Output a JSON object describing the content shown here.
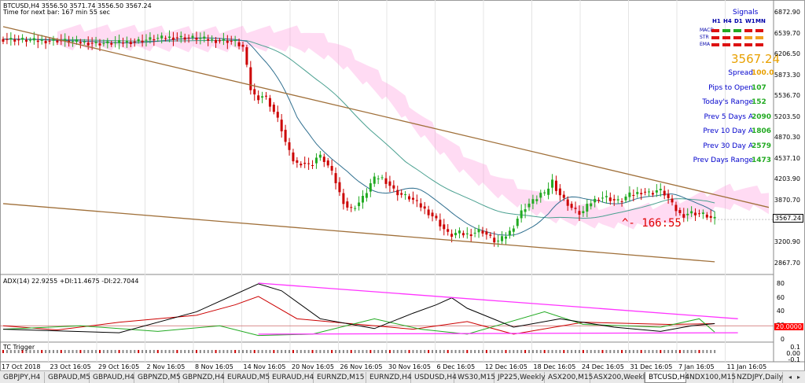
{
  "header": {
    "symbol_line": "BTCUSD,H4  3556.50 3571.74 3556.50 3567.24",
    "timer_line": "Time for next bar: 167 min 55 sec"
  },
  "signals": {
    "title": "Signals",
    "columns": [
      "H1",
      "H4",
      "D1",
      "W1",
      "MN"
    ],
    "rows": [
      {
        "label": "MACD",
        "colors": [
          "#dd1111",
          "#22aa22",
          "#22aa22",
          "#dd1111",
          "#dd1111"
        ]
      },
      {
        "label": "STR",
        "colors": [
          "#dd1111",
          "#dd1111",
          "#dd1111",
          "#f0a020",
          "#f0a020"
        ]
      },
      {
        "label": "EMA",
        "colors": [
          "#dd1111",
          "#dd1111",
          "#dd1111",
          "#dd1111",
          "#dd1111"
        ]
      }
    ]
  },
  "info": {
    "current_price": "3567.24",
    "items": [
      {
        "label": "Spread",
        "value": "100.0",
        "color": "#e8a000"
      },
      {
        "label": "Pips to Open",
        "value": "107",
        "color": "#22aa22"
      },
      {
        "label": "Today's Range",
        "value": "152",
        "color": "#22aa22"
      },
      {
        "label": "Prev 5 Days A",
        "value": "2090",
        "color": "#22aa22"
      },
      {
        "label": "Prev 10 Day A",
        "value": "1806",
        "color": "#22aa22"
      },
      {
        "label": "Prev 30 Day A",
        "value": "2579",
        "color": "#22aa22"
      },
      {
        "label": "Prev Days Range",
        "value": "1473",
        "color": "#22aa22"
      }
    ],
    "countdown": "^- 166:55"
  },
  "adx": {
    "title": "ADX(14) 22.9255 +DI:11.4675 -DI:22.7044",
    "level_label": "20.0000",
    "yticks": [
      "80",
      "60",
      "40",
      "20",
      "0"
    ]
  },
  "tc": {
    "title": "TC Trigger",
    "yticks": [
      "0.1",
      "0.00",
      "-0.1"
    ]
  },
  "tabs": {
    "items": [
      "GBPJPY,H4",
      "GBPAUD,M5",
      "GBPAUD,H4",
      "GBPNZD,M5",
      "GBPNZD,H4",
      "EURAUD,M5",
      "EURAUD,H4",
      "EURNZD,M15",
      "EURNZD,H4",
      "USDUSD,H4",
      "WS30,M15",
      "JP225,Weekly",
      "ASX200,M15",
      "ASX200,Weekly",
      "BTCUSD,H4",
      "NDX100,M15",
      "NZDJPY,Daily"
    ],
    "active": "BTCUSD,H4"
  },
  "colors": {
    "bull_candle": "#22aa22",
    "bear_candle": "#cc0000",
    "trendline": "#a0703a",
    "ma_fast": "#2f6f8f",
    "ma_slow": "#4aa090",
    "cloud": "#ff99dd",
    "adx_line": "#000000",
    "plus_di": "#22aa22",
    "minus_di": "#cc0000",
    "adx_trend": "#ff33ff"
  },
  "chart_data": {
    "type": "candlestick",
    "title": "",
    "price_axis": {
      "ticks": [
        "6872.90",
        "6539.70",
        "6206.50",
        "5873.30",
        "5536.70",
        "5203.50",
        "4870.30",
        "4537.10",
        "4203.90",
        "3870.70",
        "3567.24",
        "3200.90",
        "2867.70"
      ],
      "range": [
        2700,
        7000
      ]
    },
    "x_labels": [
      "17 Oct 2018",
      "23 Oct 16:05",
      "29 Oct 16:05",
      "2 Nov 16:05",
      "8 Nov 16:05",
      "14 Nov 16:05",
      "20 Nov 16:05",
      "26 Nov 16:05",
      "30 Nov 16:05",
      "6 Dec 16:05",
      "12 Dec 16:05",
      "18 Dec 16:05",
      "24 Dec 16:05",
      "31 Dec 16:05",
      "7 Jan 16:05",
      "11 Jan 16:05"
    ],
    "price_path": [
      [
        0,
        6450
      ],
      [
        5,
        6440
      ],
      [
        10,
        6420
      ],
      [
        15,
        6430
      ],
      [
        20,
        6400
      ],
      [
        25,
        6380
      ],
      [
        30,
        6390
      ],
      [
        35,
        6420
      ],
      [
        40,
        6460
      ],
      [
        45,
        6480
      ],
      [
        50,
        6470
      ],
      [
        55,
        6430
      ],
      [
        60,
        6420
      ],
      [
        63,
        6300
      ],
      [
        64,
        5700
      ],
      [
        66,
        5500
      ],
      [
        68,
        5560
      ],
      [
        70,
        5350
      ],
      [
        72,
        5100
      ],
      [
        74,
        4700
      ],
      [
        76,
        4450
      ],
      [
        78,
        4480
      ],
      [
        80,
        4420
      ],
      [
        82,
        4600
      ],
      [
        84,
        4480
      ],
      [
        86,
        4250
      ],
      [
        88,
        3900
      ],
      [
        90,
        3720
      ],
      [
        92,
        3800
      ],
      [
        94,
        3950
      ],
      [
        96,
        4200
      ],
      [
        98,
        4250
      ],
      [
        100,
        4150
      ],
      [
        102,
        4000
      ],
      [
        104,
        3950
      ],
      [
        106,
        3900
      ],
      [
        108,
        3800
      ],
      [
        110,
        3700
      ],
      [
        112,
        3600
      ],
      [
        114,
        3450
      ],
      [
        116,
        3300
      ],
      [
        118,
        3360
      ],
      [
        120,
        3320
      ],
      [
        122,
        3350
      ],
      [
        124,
        3400
      ],
      [
        126,
        3300
      ],
      [
        128,
        3200
      ],
      [
        130,
        3280
      ],
      [
        132,
        3400
      ],
      [
        134,
        3650
      ],
      [
        136,
        3800
      ],
      [
        138,
        3880
      ],
      [
        140,
        4020
      ],
      [
        141,
        3900
      ],
      [
        142,
        4250
      ],
      [
        144,
        4000
      ],
      [
        146,
        3850
      ],
      [
        148,
        3720
      ],
      [
        150,
        3650
      ],
      [
        152,
        3820
      ],
      [
        154,
        3900
      ],
      [
        156,
        3930
      ],
      [
        158,
        3880
      ],
      [
        160,
        3850
      ],
      [
        162,
        3950
      ],
      [
        164,
        3980
      ],
      [
        166,
        4020
      ],
      [
        168,
        3980
      ],
      [
        170,
        4050
      ],
      [
        172,
        3950
      ],
      [
        174,
        3750
      ],
      [
        176,
        3620
      ],
      [
        178,
        3680
      ],
      [
        180,
        3660
      ],
      [
        182,
        3640
      ],
      [
        184,
        3567
      ]
    ],
    "upper_trendline": [
      [
        0,
        6650
      ],
      [
        198,
        3760
      ]
    ],
    "lower_trendline": [
      [
        0,
        3820
      ],
      [
        184,
        2890
      ]
    ],
    "adx_series": {
      "adx": [
        [
          0,
          15
        ],
        [
          30,
          10
        ],
        [
          50,
          40
        ],
        [
          66,
          80
        ],
        [
          72,
          70
        ],
        [
          82,
          30
        ],
        [
          96,
          16
        ],
        [
          106,
          38
        ],
        [
          112,
          50
        ],
        [
          116,
          60
        ],
        [
          120,
          45
        ],
        [
          132,
          18
        ],
        [
          144,
          30
        ],
        [
          158,
          18
        ],
        [
          170,
          12
        ],
        [
          178,
          20
        ],
        [
          184,
          23
        ]
      ],
      "plus_di": [
        [
          0,
          15
        ],
        [
          20,
          20
        ],
        [
          40,
          12
        ],
        [
          56,
          20
        ],
        [
          66,
          6
        ],
        [
          80,
          8
        ],
        [
          96,
          30
        ],
        [
          108,
          15
        ],
        [
          120,
          8
        ],
        [
          140,
          40
        ],
        [
          150,
          22
        ],
        [
          170,
          18
        ],
        [
          180,
          30
        ],
        [
          184,
          11
        ]
      ],
      "minus_di": [
        [
          0,
          20
        ],
        [
          14,
          14
        ],
        [
          30,
          25
        ],
        [
          50,
          35
        ],
        [
          60,
          50
        ],
        [
          66,
          62
        ],
        [
          76,
          30
        ],
        [
          92,
          22
        ],
        [
          106,
          15
        ],
        [
          120,
          26
        ],
        [
          132,
          8
        ],
        [
          150,
          25
        ],
        [
          172,
          22
        ],
        [
          184,
          23
        ]
      ],
      "trend_upper": [
        [
          66,
          81
        ],
        [
          190,
          30
        ]
      ],
      "trend_lower": [
        [
          66,
          8
        ],
        [
          190,
          10
        ]
      ],
      "level": 20
    }
  }
}
